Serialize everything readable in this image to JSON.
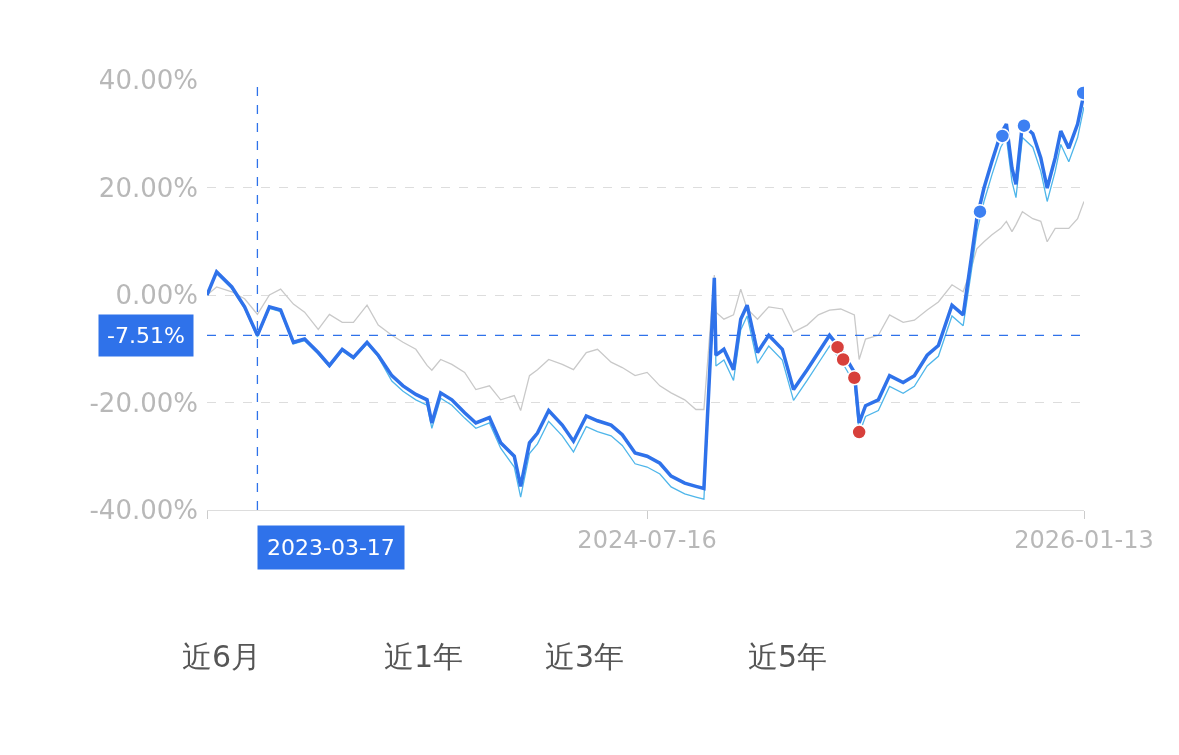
{
  "chart_data": {
    "type": "line",
    "x": [
      "2023-01-13",
      "2023-01-25",
      "2023-02-13",
      "2023-03-01",
      "2023-03-17",
      "2023-04-01",
      "2023-04-15",
      "2023-05-01",
      "2023-05-15",
      "2023-06-01",
      "2023-06-15",
      "2023-07-01",
      "2023-07-15",
      "2023-08-01",
      "2023-08-15",
      "2023-09-01",
      "2023-09-15",
      "2023-10-01",
      "2023-10-15",
      "2023-10-21",
      "2023-11-01",
      "2023-11-15",
      "2023-12-01",
      "2023-12-15",
      "2024-01-01",
      "2024-01-15",
      "2024-02-01",
      "2024-02-09",
      "2024-02-20",
      "2024-03-01",
      "2024-03-15",
      "2024-04-01",
      "2024-04-15",
      "2024-05-01",
      "2024-05-15",
      "2024-06-01",
      "2024-06-15",
      "2024-07-01",
      "2024-07-16",
      "2024-08-01",
      "2024-08-15",
      "2024-09-01",
      "2024-09-15",
      "2024-09-25",
      "2024-10-08",
      "2024-10-10",
      "2024-10-20",
      "2024-11-01",
      "2024-11-10",
      "2024-11-18",
      "2024-12-01",
      "2024-12-15",
      "2025-01-01",
      "2025-01-15",
      "2025-02-01",
      "2025-02-15",
      "2025-03-01",
      "2025-03-15",
      "2025-04-01",
      "2025-04-07",
      "2025-04-15",
      "2025-05-01",
      "2025-05-15",
      "2025-06-01",
      "2025-06-15",
      "2025-07-01",
      "2025-07-15",
      "2025-08-01",
      "2025-08-15",
      "2025-08-25",
      "2025-09-01",
      "2025-09-10",
      "2025-09-20",
      "2025-10-01",
      "2025-10-08",
      "2025-10-15",
      "2025-10-20",
      "2025-10-28",
      "2025-11-10",
      "2025-11-20",
      "2025-11-28",
      "2025-12-08",
      "2025-12-15",
      "2025-12-25",
      "2026-01-05",
      "2026-01-13"
    ],
    "series": [
      {
        "type": "line",
        "color": "#c9c9c9",
        "values": [
          0.0,
          1.5,
          0.6,
          -0.7,
          -3.6,
          0.0,
          1.1,
          -1.7,
          -3.2,
          -6.4,
          -3.6,
          -5.1,
          -5.1,
          -1.9,
          -5.6,
          -7.5,
          -8.8,
          -10.1,
          -13.1,
          -14.0,
          -12.0,
          -12.9,
          -14.4,
          -17.6,
          -16.9,
          -19.5,
          -18.7,
          -21.5,
          -15.0,
          -13.9,
          -12.0,
          -12.9,
          -13.9,
          -10.7,
          -10.1,
          -12.5,
          -13.5,
          -15.0,
          -14.4,
          -16.9,
          -18.2,
          -19.5,
          -21.3,
          -21.3,
          3.7,
          -3.2,
          -4.5,
          -3.7,
          1.1,
          -2.6,
          -4.5,
          -2.2,
          -2.6,
          -6.9,
          -5.6,
          -3.7,
          -2.8,
          -2.6,
          -3.7,
          -12.0,
          -8.2,
          -7.5,
          -3.7,
          -5.1,
          -4.7,
          -2.8,
          -1.3,
          1.9,
          0.6,
          4.9,
          8.6,
          9.9,
          11.2,
          12.4,
          13.7,
          11.8,
          13.1,
          15.5,
          14.2,
          13.7,
          9.9,
          12.4,
          12.4,
          12.4,
          14.2,
          17.4
        ]
      },
      {
        "type": "line",
        "color": "#4fb6ea",
        "values": [
          0.0,
          4.0,
          1.2,
          -2.5,
          -7.8,
          -2.5,
          -3.1,
          -9.1,
          -8.5,
          -11.0,
          -13.4,
          -10.4,
          -11.9,
          -9.1,
          -11.5,
          -16.0,
          -17.9,
          -19.5,
          -20.5,
          -24.8,
          -19.2,
          -20.5,
          -22.9,
          -24.8,
          -23.8,
          -28.5,
          -32.0,
          -37.6,
          -29.5,
          -27.7,
          -23.5,
          -26.2,
          -29.2,
          -24.5,
          -25.4,
          -26.2,
          -28.0,
          -31.4,
          -32.0,
          -33.3,
          -35.7,
          -37.0,
          -37.6,
          -38.0,
          2.5,
          -13.2,
          -12.1,
          -15.9,
          -6.5,
          -3.9,
          -12.7,
          -9.5,
          -12.1,
          -19.6,
          -15.9,
          -12.7,
          -9.5,
          -12.1,
          -16.4,
          -25.8,
          -22.6,
          -21.5,
          -17.0,
          -18.3,
          -17.0,
          -13.2,
          -11.4,
          -3.9,
          -5.7,
          4.2,
          11.7,
          17.4,
          22.4,
          27.5,
          29.3,
          21.1,
          18.1,
          29.3,
          27.5,
          23.0,
          17.4,
          23.0,
          28.0,
          24.8,
          29.3,
          35.0
        ]
      },
      {
        "color": "#2f72ea",
        "values": [
          0.0,
          4.3,
          1.5,
          -2.2,
          -7.5,
          -2.2,
          -2.8,
          -8.8,
          -8.2,
          -10.7,
          -13.1,
          -10.1,
          -11.6,
          -8.8,
          -11.2,
          -15.0,
          -16.9,
          -18.5,
          -19.5,
          -23.8,
          -18.2,
          -19.5,
          -21.9,
          -23.8,
          -22.8,
          -27.5,
          -30.0,
          -35.6,
          -27.5,
          -25.7,
          -21.5,
          -24.2,
          -27.2,
          -22.5,
          -23.4,
          -24.2,
          -26.0,
          -29.4,
          -30.0,
          -31.3,
          -33.7,
          -35.0,
          -35.6,
          -36.0,
          3.2,
          -11.2,
          -10.1,
          -13.9,
          -4.5,
          -1.9,
          -10.7,
          -7.5,
          -10.1,
          -17.6,
          -13.9,
          -10.7,
          -7.5,
          -10.1,
          -14.4,
          -23.8,
          -20.6,
          -19.5,
          -15.0,
          -16.3,
          -15.0,
          -11.2,
          -9.4,
          -1.9,
          -3.7,
          6.7,
          14.2,
          19.9,
          24.9,
          30.0,
          31.8,
          23.6,
          20.6,
          31.8,
          30.0,
          25.5,
          19.9,
          25.5,
          30.5,
          27.3,
          31.8,
          37.5
        ]
      },
      {
        "type": "scatter",
        "color": "#d7403b",
        "marker": "circle",
        "x": [
          "2025-03-11",
          "2025-03-18",
          "2025-04-01",
          "2025-04-07"
        ],
        "values": [
          -9.7,
          -12.0,
          -15.4,
          -25.5
        ]
      },
      {
        "type": "scatter",
        "color": "#3d80f2",
        "marker": "circle",
        "x": [
          "2025-09-05",
          "2025-10-03",
          "2025-10-30",
          "2026-01-12"
        ],
        "values": [
          15.5,
          29.6,
          31.5,
          37.6
        ]
      }
    ],
    "xlim": [
      "2023-01-13",
      "2026-01-13"
    ],
    "xticks": [
      {
        "value": "2023-01-13",
        "label": null
      },
      {
        "value": "2024-07-16",
        "label": "2024-07-16"
      },
      {
        "value": "2026-01-13",
        "label": "2026-01-13"
      }
    ],
    "ylim": [
      -40,
      40
    ],
    "yticks": [
      {
        "value": -40,
        "label": "-40.00%"
      },
      {
        "value": -20,
        "label": "-20.00%"
      },
      {
        "value": 0,
        "label": "0.00%"
      },
      {
        "value": 20,
        "label": "20.00%"
      },
      {
        "value": 40,
        "label": "40.00%"
      }
    ],
    "grid": "y",
    "ref_lines": [
      {
        "axis": "x",
        "value": "2023-03-17",
        "label": "2023-03-17",
        "color": "#2f72ea",
        "line_style": "dashed"
      },
      {
        "axis": "y",
        "value": -7.51,
        "label": "-7.51%",
        "color": "#2f72ea",
        "line_style": "dashed"
      }
    ],
    "annotations": [
      "近6月",
      "近1年",
      "近3年",
      "近5年"
    ]
  }
}
